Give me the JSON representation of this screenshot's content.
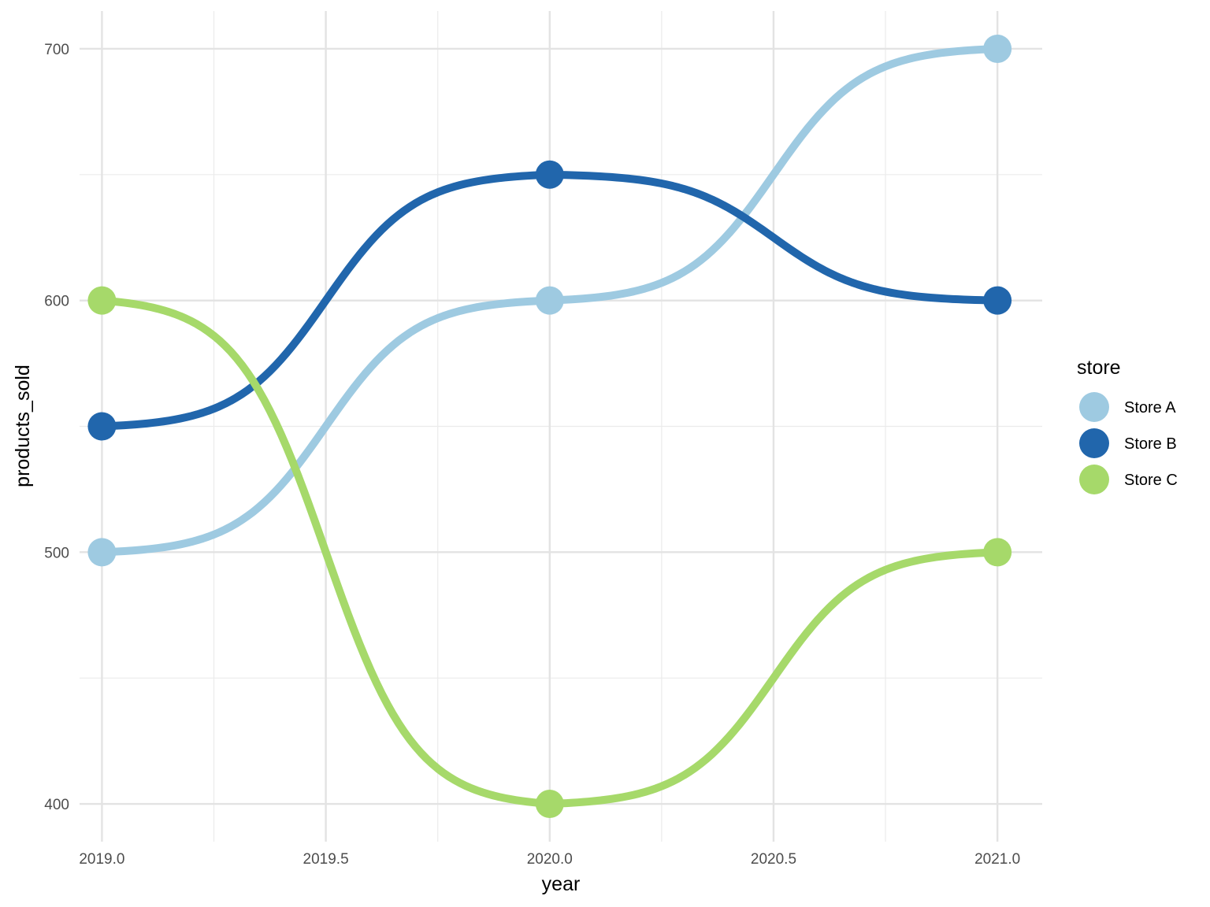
{
  "chart_data": {
    "type": "line",
    "title": "",
    "xlabel": "year",
    "ylabel": "products_sold",
    "x": [
      2019,
      2020,
      2021
    ],
    "xlim": [
      2018.95,
      2021.1
    ],
    "ylim": [
      385,
      715
    ],
    "x_ticks": [
      2019.0,
      2019.5,
      2020.0,
      2020.5,
      2021.0
    ],
    "x_tick_labels": [
      "2019.0",
      "2019.5",
      "2020.0",
      "2020.5",
      "2021.0"
    ],
    "y_ticks": [
      400,
      500,
      600,
      700
    ],
    "y_tick_labels": [
      "400",
      "500",
      "600",
      "700"
    ],
    "grid": true,
    "line_style": "sigmoid-smoothed",
    "legend": {
      "title": "store",
      "position": "right"
    },
    "series": [
      {
        "name": "Store A",
        "color": "#9ecae1",
        "values": [
          500,
          600,
          700
        ]
      },
      {
        "name": "Store B",
        "color": "#2166ac",
        "values": [
          550,
          650,
          600
        ]
      },
      {
        "name": "Store C",
        "color": "#a6d96a",
        "values": [
          600,
          400,
          500
        ]
      }
    ]
  }
}
